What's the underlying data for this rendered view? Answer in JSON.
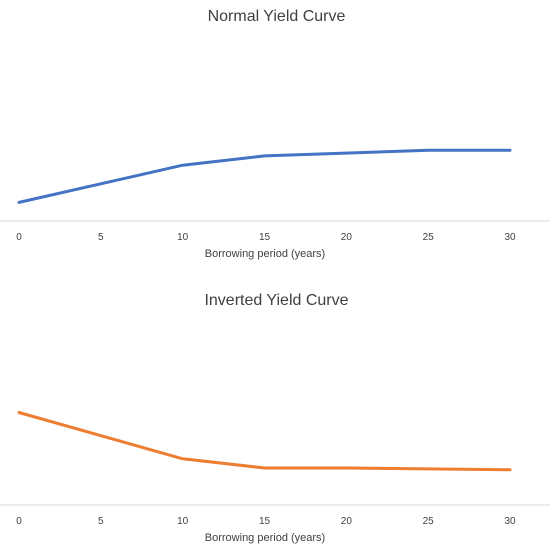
{
  "chart_data": [
    {
      "type": "line",
      "title": "Normal Yield Curve",
      "xlabel": "Borrowing period (years)",
      "ylabel": "",
      "x_ticks": [
        0,
        5,
        10,
        15,
        20,
        25,
        30
      ],
      "xlim": [
        0,
        30
      ],
      "ylim": [
        0,
        10
      ],
      "grid": false,
      "series": [
        {
          "color": "#4472C4",
          "x": [
            0,
            10,
            15,
            25,
            30
          ],
          "y": [
            1.0,
            3.0,
            3.5,
            3.8,
            3.8
          ]
        }
      ]
    },
    {
      "type": "line",
      "title": "Inverted Yield Curve",
      "xlabel": "Borrowing period (years)",
      "ylabel": "",
      "x_ticks": [
        0,
        5,
        10,
        15,
        20,
        25,
        30
      ],
      "xlim": [
        0,
        30
      ],
      "ylim": [
        0,
        10
      ],
      "grid": false,
      "series": [
        {
          "color": "#ED7D31",
          "x": [
            0,
            10,
            15,
            20,
            30
          ],
          "y": [
            5.0,
            2.5,
            2.0,
            2.0,
            1.9
          ]
        }
      ]
    }
  ]
}
